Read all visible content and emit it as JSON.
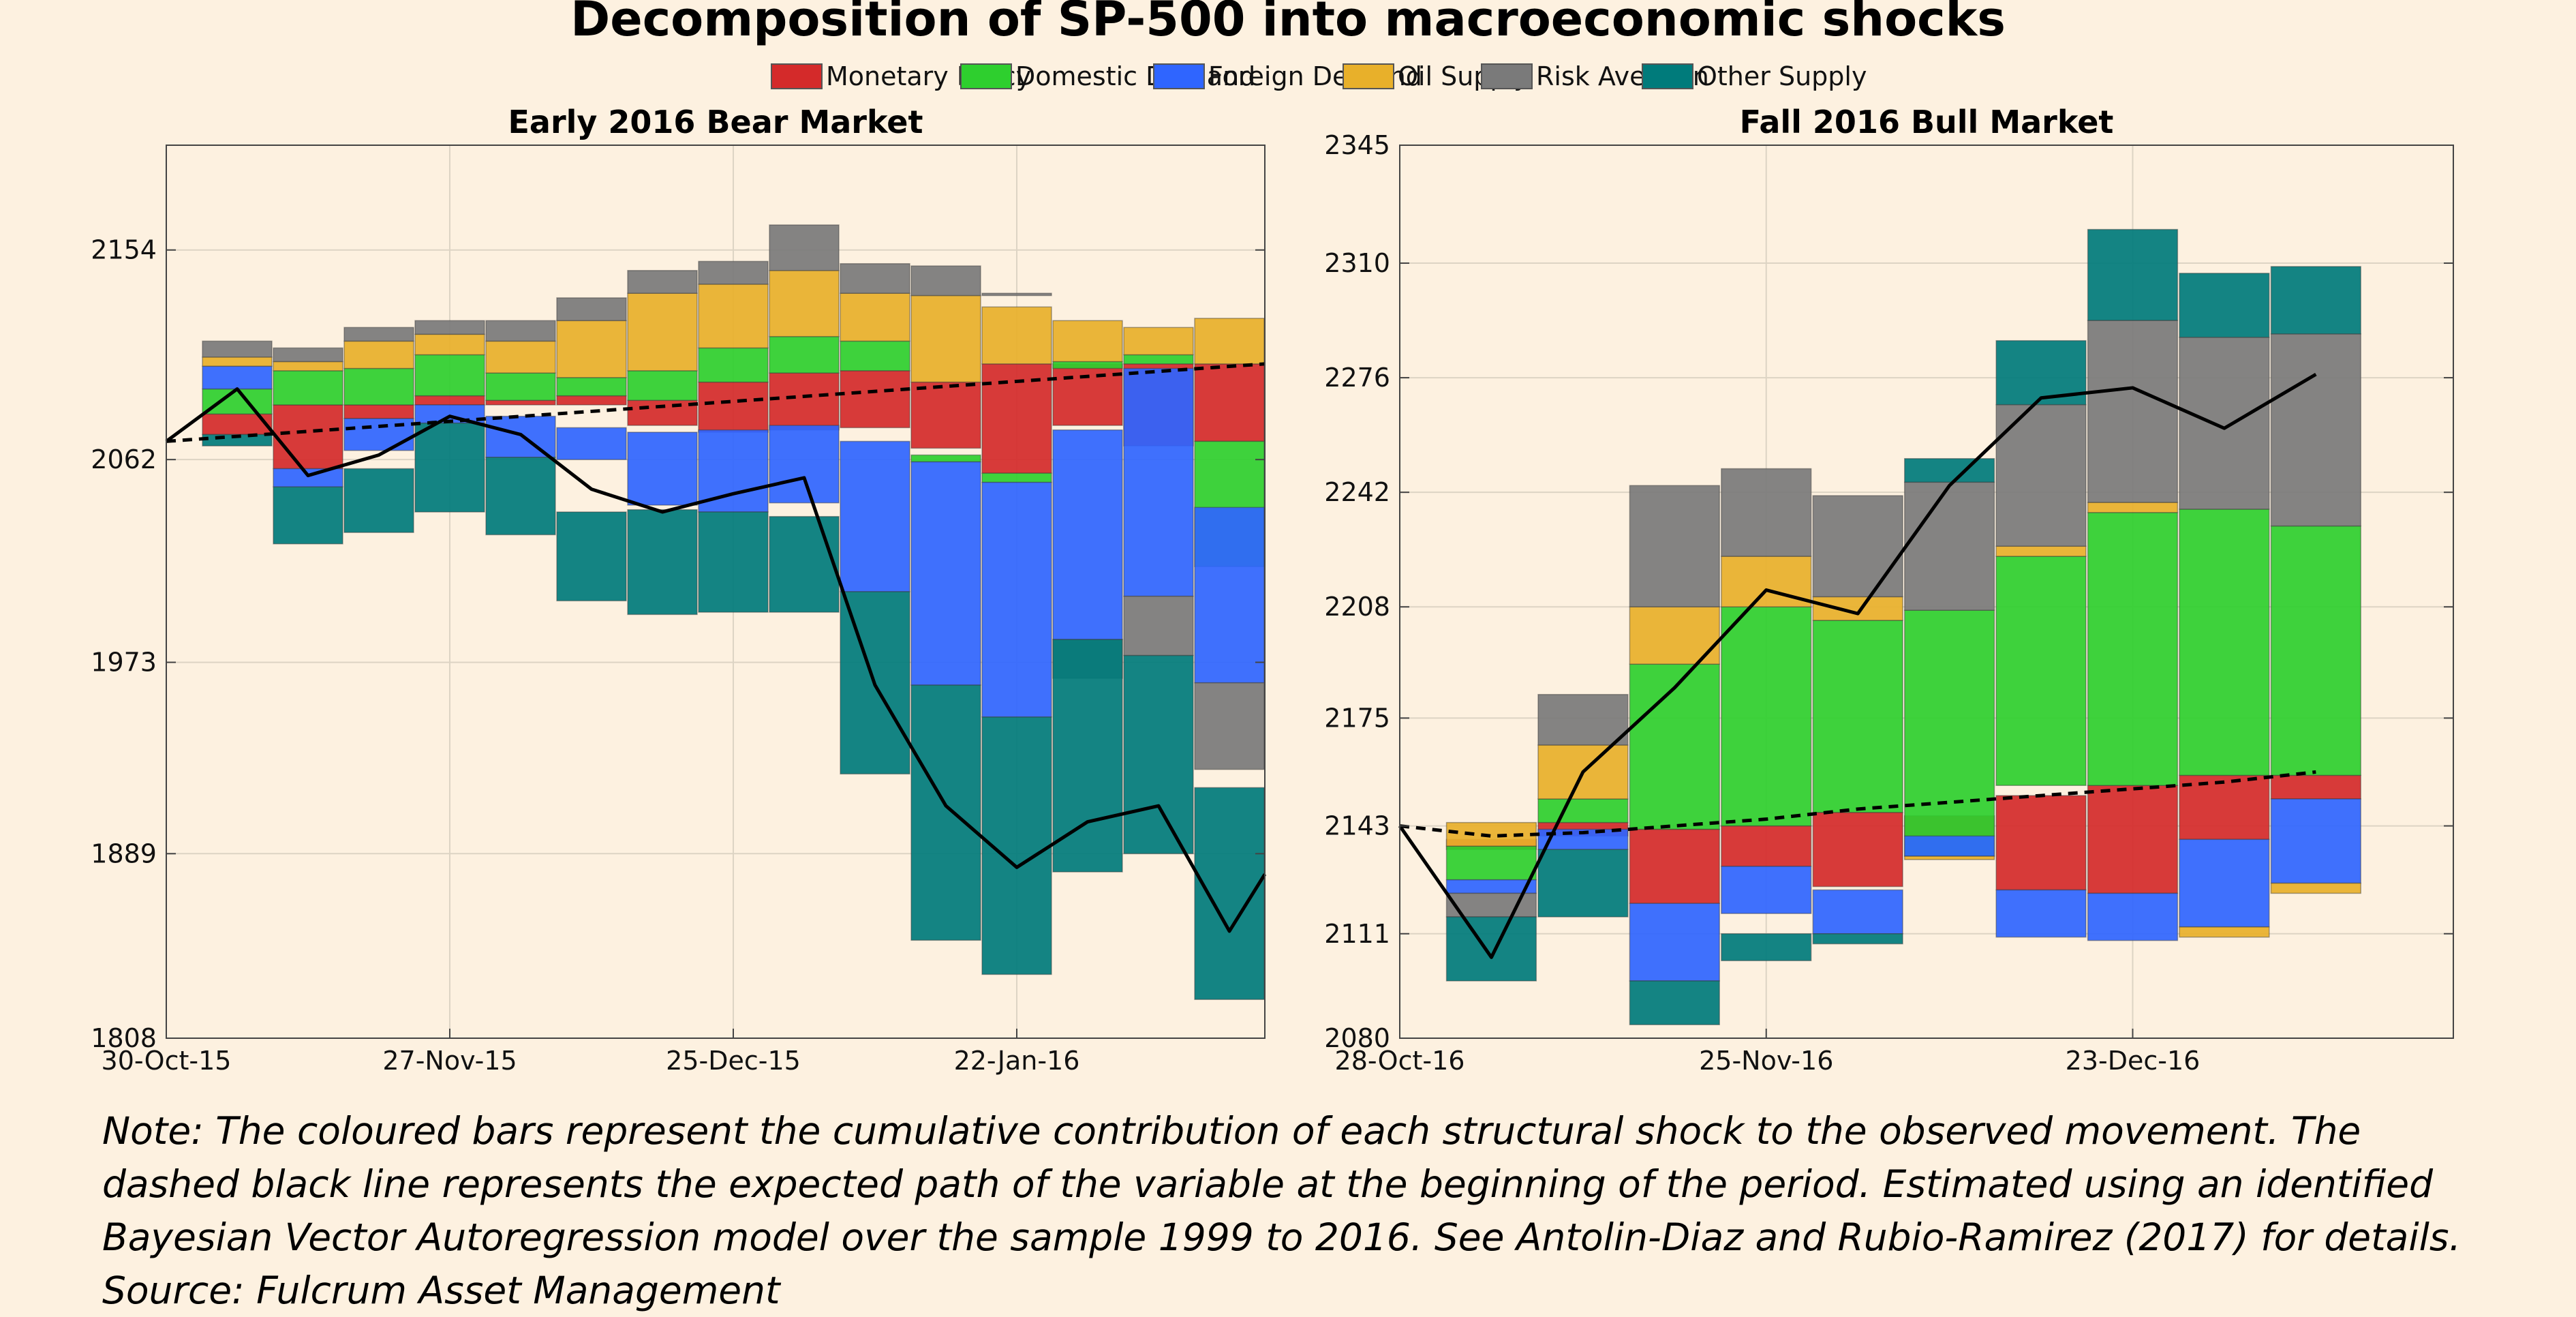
{
  "title": "Decomposition of SP-500 into macroeconomic shocks",
  "legend": [
    {
      "name": "Monetary Policy",
      "color": "#d42a2a"
    },
    {
      "name": "Domestic Demand",
      "color": "#2ecf2e"
    },
    {
      "name": "Foreign Demand",
      "color": "#2f65ff"
    },
    {
      "name": "Oil Supply",
      "color": "#e8b02a"
    },
    {
      "name": "Risk Aversion",
      "color": "#7a7a7a"
    },
    {
      "name": "Other Supply",
      "color": "#007b7b"
    }
  ],
  "note": "Note: The coloured bars represent the cumulative contribution of each structural shock to the observed movement. The dashed black line represents the expected path of the variable at the beginning of the period. Estimated using an identified Bayesian Vector Autoregression model over the sample 1999 to 2016. See Antolin-Diaz and Rubio-Ramirez (2017) for details. Source: Fulcrum Asset Management",
  "chart_data": [
    {
      "type": "bar",
      "stacked": "relative",
      "title": "Early 2016 Bear Market",
      "ylim": [
        1808,
        2200
      ],
      "yticks": [
        1808,
        1889,
        1973,
        2062,
        2154
      ],
      "xlim": [
        0,
        15.5
      ],
      "xticks": [
        {
          "x": 0,
          "label": "30-Oct-15"
        },
        {
          "x": 4,
          "label": "27-Nov-15"
        },
        {
          "x": 8,
          "label": "25-Dec-15"
        },
        {
          "x": 12,
          "label": "22-Jan-16"
        }
      ],
      "grid": true,
      "bar_x": [
        1,
        2,
        3,
        4,
        5,
        6,
        7,
        8,
        9,
        10,
        11,
        12,
        13,
        14,
        15
      ],
      "series": [
        {
          "name": "Monetary Policy",
          "values": [
            [
              2073,
              2082
            ],
            [
              2058,
              2086
            ],
            [
              2080,
              2086
            ],
            [
              2086,
              2090
            ],
            [
              2086,
              2088
            ],
            [
              2086,
              2090
            ],
            [
              2077,
              2088
            ],
            [
              2074,
              2096
            ],
            [
              2075,
              2100
            ],
            [
              2076,
              2101
            ],
            [
              2067,
              2096
            ],
            [
              2056,
              2104
            ],
            [
              2077,
              2104
            ],
            [
              2068,
              2104
            ],
            [
              2070,
              2104
            ]
          ]
        },
        {
          "name": "Domestic Demand",
          "values": [
            [
              2082,
              2093
            ],
            [
              2086,
              2101
            ],
            [
              2086,
              2102
            ],
            [
              2090,
              2108
            ],
            [
              2088,
              2100
            ],
            [
              2090,
              2098
            ],
            [
              2088,
              2101
            ],
            [
              2096,
              2111
            ],
            [
              2100,
              2116
            ],
            [
              2101,
              2114
            ],
            [
              2061,
              2064
            ],
            [
              2052,
              2056
            ],
            [
              2102,
              2105
            ],
            [
              2104,
              2108
            ],
            [
              2015,
              2070
            ]
          ]
        },
        {
          "name": "Foreign Demand",
          "values": [
            [
              2093,
              2103
            ],
            [
              2050,
              2058
            ],
            [
              2066,
              2080
            ],
            [
              2078,
              2086
            ],
            [
              2063,
              2081
            ],
            [
              2062,
              2076
            ],
            [
              2042,
              2074
            ],
            [
              2039,
              2075
            ],
            [
              2043,
              2077
            ],
            [
              2004,
              2070
            ],
            [
              1963,
              2061
            ],
            [
              1949,
              2052
            ],
            [
              1983,
              2075
            ],
            [
              2002,
              2102
            ],
            [
              1964,
              2041
            ]
          ]
        },
        {
          "name": "Oil Supply",
          "values": [
            [
              2103,
              2107
            ],
            [
              2101,
              2105
            ],
            [
              2102,
              2114
            ],
            [
              2108,
              2117
            ],
            [
              2100,
              2114
            ],
            [
              2098,
              2123
            ],
            [
              2101,
              2135
            ],
            [
              2111,
              2139
            ],
            [
              2116,
              2145
            ],
            [
              2114,
              2135
            ],
            [
              2096,
              2134
            ],
            [
              2104,
              2129
            ],
            [
              2105,
              2123
            ],
            [
              2108,
              2120
            ],
            [
              2104,
              2124
            ]
          ]
        },
        {
          "name": "Risk Aversion",
          "values": [
            [
              2107,
              2114
            ],
            [
              2105,
              2111
            ],
            [
              2114,
              2120
            ],
            [
              2117,
              2123
            ],
            [
              2114,
              2123
            ],
            [
              2123,
              2133
            ],
            [
              2135,
              2145
            ],
            [
              2139,
              2149
            ],
            [
              2145,
              2165
            ],
            [
              2135,
              2148
            ],
            [
              2134,
              2147
            ],
            [
              2134,
              2135
            ],
            [
              1966,
              1983
            ],
            [
              1976,
              2002
            ],
            [
              1926,
              1964
            ]
          ]
        },
        {
          "name": "Other Supply",
          "values": [
            [
              2068,
              2073
            ],
            [
              2025,
              2050
            ],
            [
              2030,
              2058
            ],
            [
              2039,
              2078
            ],
            [
              2029,
              2063
            ],
            [
              2000,
              2039
            ],
            [
              1994,
              2040
            ],
            [
              1995,
              2039
            ],
            [
              1995,
              2037
            ],
            [
              1924,
              2004
            ],
            [
              1851,
              1963
            ],
            [
              1836,
              1949
            ],
            [
              1881,
              1983
            ],
            [
              1889,
              1976
            ],
            [
              1825,
              1918
            ]
          ]
        }
      ],
      "dashed_line": {
        "x": [
          0,
          15.5
        ],
        "y": [
          2070,
          2104
        ]
      },
      "solid_line": {
        "x": [
          0,
          1,
          2,
          3,
          4,
          5,
          6,
          7,
          8,
          9,
          10,
          11,
          12,
          13,
          14,
          15,
          15.5
        ],
        "y": [
          2070,
          2093,
          2055,
          2064,
          2081,
          2073,
          2049,
          2039,
          2047,
          2054,
          1963,
          1910,
          1883,
          1903,
          1910,
          1855,
          1880
        ]
      }
    },
    {
      "type": "bar",
      "stacked": "relative",
      "title": "Fall 2016 Bull Market",
      "ylim": [
        2080,
        2345
      ],
      "yticks": [
        2080,
        2111,
        2143,
        2175,
        2208,
        2242,
        2276,
        2310,
        2345
      ],
      "xlim": [
        0,
        11.5
      ],
      "xticks": [
        {
          "x": 0,
          "label": "28-Oct-16"
        },
        {
          "x": 4,
          "label": "25-Nov-16"
        },
        {
          "x": 8,
          "label": "23-Dec-16"
        }
      ],
      "grid": true,
      "bar_x": [
        1,
        2,
        3,
        4,
        5,
        6,
        7,
        8,
        9,
        10
      ],
      "series": [
        {
          "name": "Monetary Policy",
          "values": [
            [
              2136,
              2139
            ],
            [
              2140,
              2144
            ],
            [
              2120,
              2142
            ],
            [
              2131,
              2143
            ],
            [
              2125,
              2147
            ],
            [
              2140,
              2146
            ],
            [
              2124,
              2152
            ],
            [
              2123,
              2155
            ],
            [
              2139,
              2158
            ],
            [
              2151,
              2158
            ]
          ]
        },
        {
          "name": "Domestic Demand",
          "values": [
            [
              2127,
              2137
            ],
            [
              2144,
              2151
            ],
            [
              2142,
              2191
            ],
            [
              2143,
              2208
            ],
            [
              2147,
              2204
            ],
            [
              2134,
              2207
            ],
            [
              2155,
              2223
            ],
            [
              2155,
              2236
            ],
            [
              2158,
              2237
            ],
            [
              2158,
              2232
            ]
          ]
        },
        {
          "name": "Foreign Demand",
          "values": [
            [
              2123,
              2127
            ],
            [
              2136,
              2142
            ],
            [
              2097,
              2120
            ],
            [
              2117,
              2131
            ],
            [
              2111,
              2124
            ],
            [
              2134,
              2140
            ],
            [
              2110,
              2124
            ],
            [
              2109,
              2123
            ],
            [
              2113,
              2139
            ],
            [
              2126,
              2151
            ]
          ]
        },
        {
          "name": "Oil Supply",
          "values": [
            [
              2137,
              2144
            ],
            [
              2151,
              2167
            ],
            [
              2191,
              2208
            ],
            [
              2208,
              2223
            ],
            [
              2204,
              2211
            ],
            [
              2133,
              2134
            ],
            [
              2223,
              2226
            ],
            [
              2236,
              2239
            ],
            [
              2110,
              2113
            ],
            [
              2123,
              2126
            ]
          ]
        },
        {
          "name": "Risk Aversion",
          "values": [
            [
              2116,
              2123
            ],
            [
              2167,
              2182
            ],
            [
              2208,
              2244
            ],
            [
              2223,
              2249
            ],
            [
              2211,
              2241
            ],
            [
              2207,
              2245
            ],
            [
              2226,
              2268
            ],
            [
              2239,
              2293
            ],
            [
              2237,
              2288
            ],
            [
              2232,
              2289
            ]
          ]
        },
        {
          "name": "Other Supply",
          "values": [
            [
              2097,
              2116
            ],
            [
              2116,
              2136
            ],
            [
              2084,
              2097
            ],
            [
              2103,
              2111
            ],
            [
              2108,
              2111
            ],
            [
              2245,
              2252
            ],
            [
              2268,
              2287
            ],
            [
              2293,
              2320
            ],
            [
              2288,
              2307
            ],
            [
              2289,
              2309
            ]
          ]
        }
      ],
      "dashed_line": {
        "x": [
          0,
          1,
          2,
          3,
          4,
          5,
          6,
          7,
          8,
          9,
          10
        ],
        "y": [
          2143,
          2140,
          2141,
          2143,
          2145,
          2148,
          2150,
          2152,
          2154,
          2156,
          2159
        ]
      },
      "solid_line": {
        "x": [
          0,
          1,
          2,
          3,
          4,
          5,
          6,
          7,
          8,
          9,
          10
        ],
        "y": [
          2143,
          2104,
          2159,
          2184,
          2213,
          2206,
          2244,
          2270,
          2273,
          2261,
          2277
        ]
      }
    }
  ]
}
